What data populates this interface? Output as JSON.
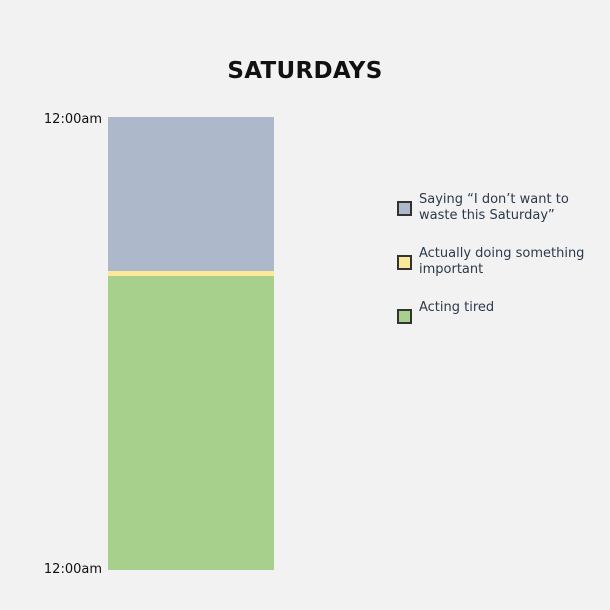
{
  "chart_data": {
    "type": "bar",
    "subtype": "stacked-100",
    "title": "SATURDAYS",
    "y_ticks": [
      "12:00am",
      "12:00am"
    ],
    "categories": [
      ""
    ],
    "series": [
      {
        "name": "Saying “I don’t want to waste this Saturday”",
        "value": 34,
        "color": "#adb8cb"
      },
      {
        "name": "Actually doing something important",
        "value": 1,
        "color": "#fde79b"
      },
      {
        "name": "Acting tired",
        "value": 65,
        "color": "#a8d08d"
      }
    ],
    "ylim": [
      0,
      100
    ],
    "legend_position": "right",
    "grid": false
  },
  "colors": {
    "background": "#f2f2f2",
    "swatch_border": "#333333"
  }
}
